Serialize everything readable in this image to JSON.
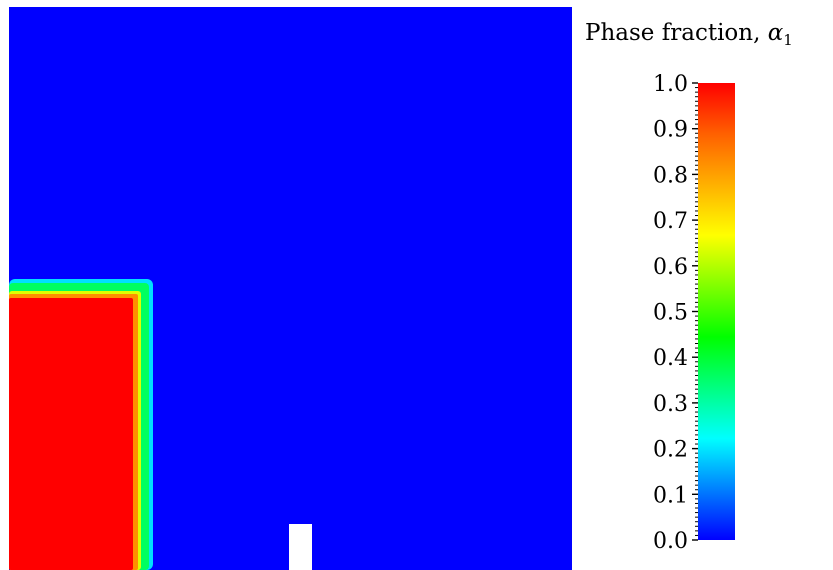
{
  "legend": {
    "title": "Phase fraction,",
    "symbol": "α",
    "subscript": "1"
  },
  "chart_data": {
    "type": "heatmap",
    "colorbar": {
      "min": 0.0,
      "max": 1.0,
      "ticks": [
        "0.0",
        "0.1",
        "0.2",
        "0.3",
        "0.4",
        "0.5",
        "0.6",
        "0.7",
        "0.8",
        "0.9",
        "1.0"
      ],
      "colormap": [
        "#0000ff",
        "#0080ff",
        "#00ffff",
        "#00ff80",
        "#00ff00",
        "#80ff00",
        "#ffff00",
        "#ffb000",
        "#ff6000",
        "#ff0000"
      ]
    },
    "field": {
      "background_value": 0.0,
      "region_value": 1.0,
      "obstacle": "white"
    }
  }
}
